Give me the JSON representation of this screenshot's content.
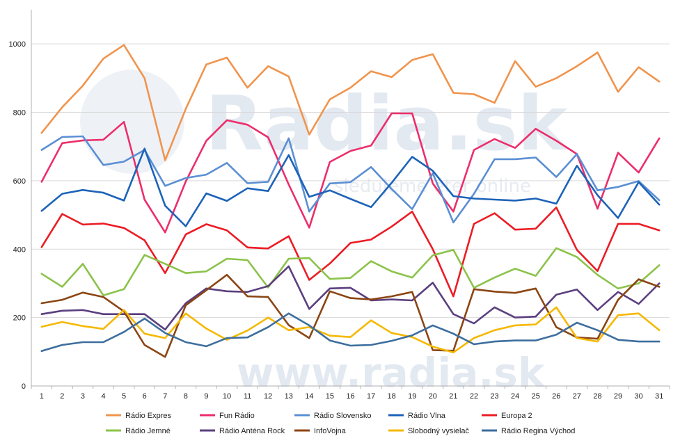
{
  "watermark": {
    "main": "Radia.sk",
    "tagline": "sledujeme éter online",
    "bottom": "www.radia.sk"
  },
  "chart_data": {
    "type": "line",
    "x": [
      1,
      2,
      3,
      4,
      5,
      6,
      7,
      8,
      9,
      10,
      11,
      12,
      13,
      14,
      15,
      16,
      17,
      18,
      19,
      20,
      21,
      22,
      23,
      24,
      25,
      26,
      27,
      28,
      29,
      30,
      31
    ],
    "ylim": [
      0,
      1100
    ],
    "yticks": [
      0,
      200,
      400,
      600,
      800,
      1000
    ],
    "grid": "horizontal",
    "legend_position": "bottom",
    "series": [
      {
        "name": "Rádio Expres",
        "color": "#f0944d",
        "values": [
          740,
          815,
          878,
          957,
          997,
          900,
          660,
          810,
          940,
          960,
          872,
          935,
          905,
          735,
          838,
          872,
          920,
          903,
          953,
          970,
          857,
          853,
          828,
          950,
          875,
          900,
          935,
          975,
          860,
          932,
          890
        ]
      },
      {
        "name": "Fun Rádio",
        "color": "#ec2e6b",
        "values": [
          597,
          710,
          718,
          720,
          772,
          545,
          449,
          598,
          717,
          777,
          764,
          727,
          589,
          463,
          655,
          687,
          703,
          797,
          797,
          592,
          510,
          690,
          722,
          696,
          752,
          717,
          678,
          518,
          682,
          624,
          724
        ]
      },
      {
        "name": "Rádio Slovensko",
        "color": "#5b8fd4",
        "values": [
          690,
          728,
          730,
          646,
          656,
          690,
          585,
          608,
          618,
          652,
          593,
          597,
          724,
          510,
          592,
          596,
          640,
          576,
          517,
          622,
          478,
          562,
          663,
          663,
          668,
          611,
          678,
          572,
          582,
          599,
          543
        ]
      },
      {
        "name": "Rádio Vlna",
        "color": "#1d63b8",
        "values": [
          512,
          562,
          573,
          565,
          542,
          694,
          527,
          467,
          563,
          541,
          578,
          570,
          675,
          553,
          572,
          547,
          523,
          594,
          670,
          629,
          555,
          548,
          545,
          542,
          548,
          533,
          644,
          558,
          491,
          596,
          530
        ]
      },
      {
        "name": "Europa 2",
        "color": "#ec1c24",
        "values": [
          406,
          503,
          472,
          475,
          462,
          426,
          330,
          443,
          473,
          455,
          405,
          402,
          438,
          310,
          358,
          418,
          428,
          466,
          510,
          400,
          262,
          474,
          505,
          457,
          460,
          522,
          398,
          336,
          474,
          474,
          455
        ]
      },
      {
        "name": "Rádio Jemné",
        "color": "#8bc34a",
        "values": [
          328,
          290,
          357,
          265,
          283,
          383,
          357,
          330,
          335,
          372,
          368,
          288,
          372,
          374,
          313,
          316,
          365,
          335,
          317,
          382,
          398,
          287,
          317,
          343,
          322,
          403,
          377,
          325,
          285,
          300,
          353
        ]
      },
      {
        "name": "Rádio Anténa Rock",
        "color": "#5b3f7f",
        "values": [
          210,
          220,
          222,
          210,
          210,
          210,
          165,
          242,
          285,
          277,
          275,
          292,
          350,
          225,
          285,
          287,
          250,
          253,
          250,
          302,
          210,
          183,
          230,
          200,
          203,
          267,
          282,
          222,
          275,
          240,
          300
        ]
      },
      {
        "name": "InfoVojna",
        "color": "#8b4513",
        "values": [
          242,
          252,
          273,
          260,
          218,
          120,
          85,
          236,
          280,
          325,
          262,
          260,
          178,
          140,
          277,
          257,
          253,
          262,
          275,
          105,
          103,
          283,
          276,
          272,
          285,
          172,
          142,
          138,
          252,
          312,
          290
        ]
      },
      {
        "name": "Slobodný vysielač",
        "color": "#f5b800",
        "values": [
          173,
          187,
          175,
          167,
          222,
          153,
          140,
          212,
          168,
          135,
          162,
          200,
          163,
          172,
          147,
          143,
          192,
          155,
          143,
          115,
          98,
          140,
          163,
          177,
          180,
          230,
          140,
          130,
          207,
          212,
          163
        ]
      },
      {
        "name": "Rádio Regina Východ",
        "color": "#3d6e9e",
        "values": [
          102,
          120,
          128,
          128,
          158,
          197,
          155,
          128,
          116,
          140,
          142,
          172,
          212,
          177,
          133,
          118,
          120,
          132,
          148,
          177,
          153,
          122,
          130,
          133,
          133,
          150,
          185,
          163,
          135,
          130,
          130
        ]
      }
    ]
  }
}
